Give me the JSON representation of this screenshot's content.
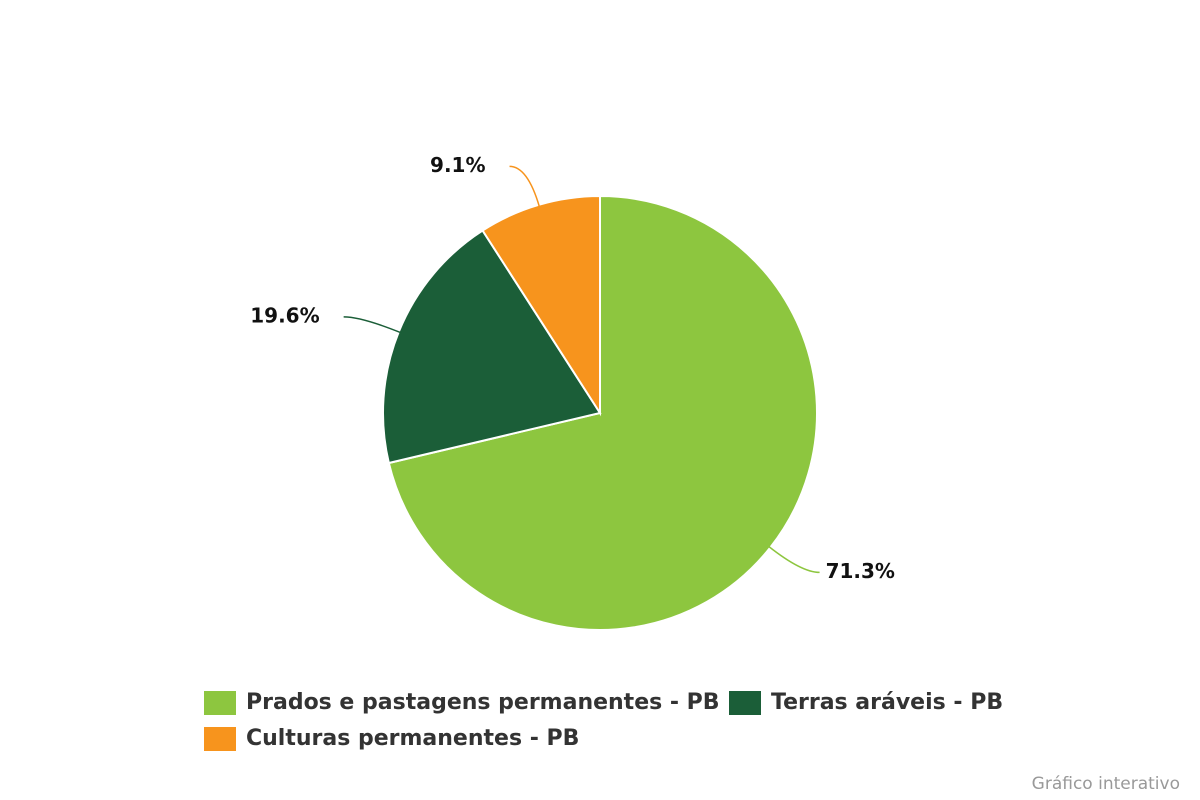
{
  "chart_data": {
    "type": "pie",
    "categories": [
      "Prados e pastagens permanentes - PB",
      "Terras aráveis - PB",
      "Culturas permanentes - PB"
    ],
    "values": [
      71.3,
      19.6,
      9.1
    ],
    "value_labels": [
      "71.3%",
      "19.6%",
      "9.1%"
    ],
    "colors": [
      "#8dc63f",
      "#1b5e38",
      "#f7941d"
    ],
    "credit": "Gráfico interativo"
  }
}
